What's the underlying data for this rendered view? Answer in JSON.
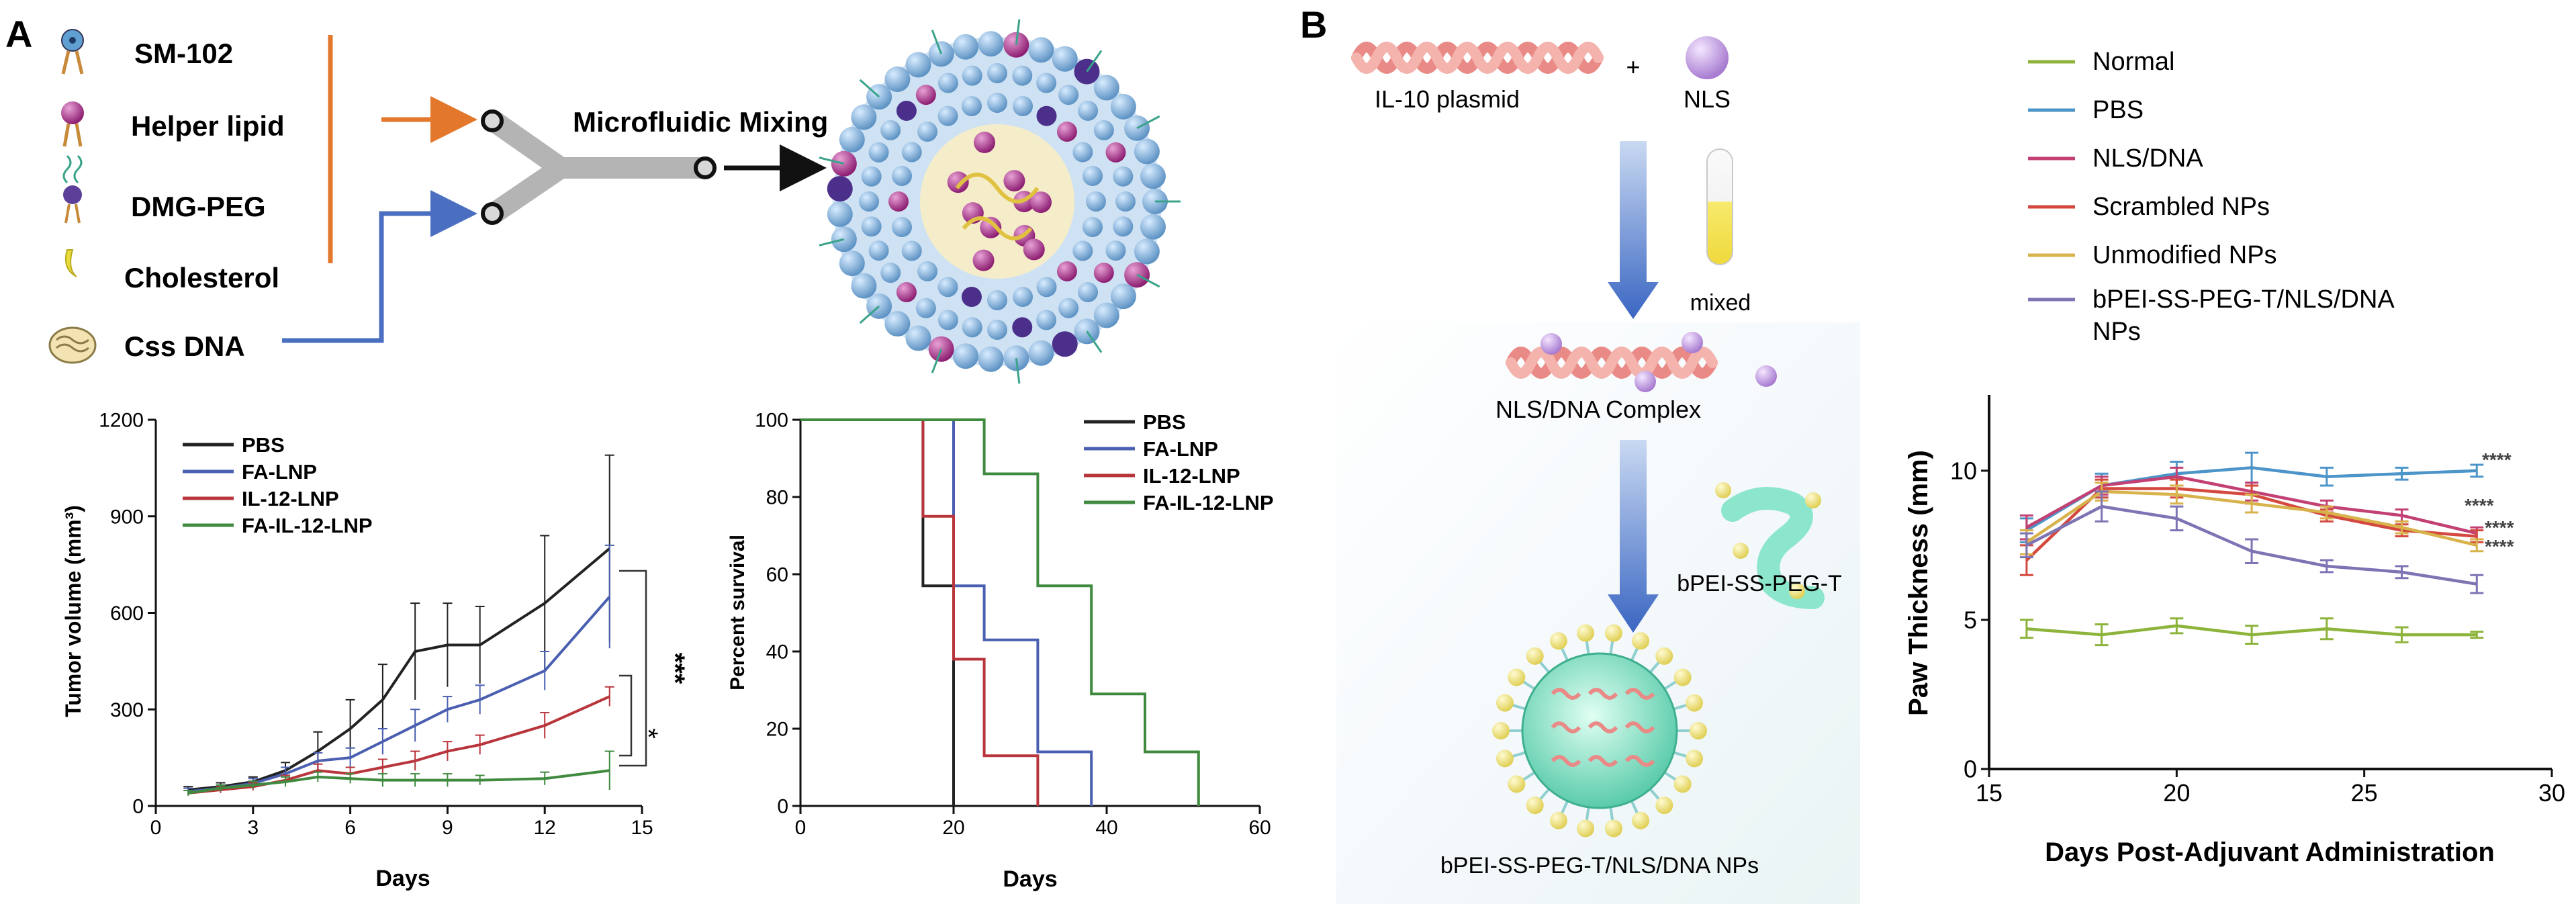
{
  "panel_a": {
    "label": "A",
    "components": [
      {
        "name": "SM-102"
      },
      {
        "name": "Helper lipid"
      },
      {
        "name": "DMG-PEG"
      },
      {
        "name": "Cholesterol"
      },
      {
        "name": "Css DNA"
      }
    ],
    "mixing_label": "Microfluidic Mixing"
  },
  "panel_b": {
    "label": "B",
    "plasmid_label": "IL-10 plasmid",
    "plus": "+",
    "nls_label": "NLS",
    "mixed_label": "mixed",
    "complex_label": "NLS/DNA Complex",
    "polymer_label": "bPEI-SS-PEG-T",
    "np_label": "bPEI-SS-PEG-T/NLS/DNA NPs"
  },
  "chart_data": [
    {
      "type": "line",
      "xlabel": "Days",
      "ylabel": "Tumor volume (mm³)",
      "xlim": [
        0,
        15
      ],
      "ylim": [
        0,
        1200
      ],
      "xticks": [
        0,
        3,
        6,
        9,
        12,
        15
      ],
      "yticks": [
        0,
        300,
        600,
        900,
        1200
      ],
      "legend": "top-left",
      "x": [
        1,
        2,
        3,
        4,
        5,
        6,
        7,
        8,
        9,
        10,
        12,
        14
      ],
      "series": [
        {
          "name": "PBS",
          "color": "#222222",
          "values": [
            50,
            60,
            75,
            110,
            170,
            240,
            330,
            480,
            500,
            500,
            630,
            800
          ],
          "errors": [
            10,
            12,
            15,
            25,
            60,
            90,
            110,
            150,
            130,
            120,
            210,
            290
          ]
        },
        {
          "name": "FA-LNP",
          "color": "#4a5fb0",
          "values": [
            45,
            55,
            70,
            100,
            140,
            150,
            200,
            250,
            300,
            330,
            420,
            650
          ],
          "errors": [
            10,
            10,
            15,
            20,
            25,
            30,
            40,
            50,
            40,
            45,
            60,
            160
          ]
        },
        {
          "name": "IL-12-LNP",
          "color": "#b8353b",
          "values": [
            40,
            50,
            60,
            80,
            110,
            100,
            120,
            140,
            170,
            190,
            250,
            340
          ],
          "errors": [
            8,
            10,
            12,
            15,
            20,
            20,
            25,
            30,
            30,
            30,
            40,
            30
          ]
        },
        {
          "name": "FA-IL-12-LNP",
          "color": "#3f8a3f",
          "values": [
            40,
            55,
            65,
            75,
            90,
            85,
            80,
            80,
            80,
            80,
            85,
            110
          ],
          "errors": [
            8,
            10,
            12,
            15,
            15,
            15,
            20,
            20,
            20,
            15,
            20,
            60
          ]
        }
      ],
      "annotations": [
        "***",
        "*"
      ]
    },
    {
      "type": "line",
      "xlabel": "Days",
      "ylabel": "Percent survival",
      "xlim": [
        0,
        60
      ],
      "ylim": [
        0,
        100
      ],
      "xticks": [
        0,
        20,
        40,
        60
      ],
      "yticks": [
        0,
        20,
        40,
        60,
        80,
        100
      ],
      "legend": "top-right",
      "step": true,
      "series": [
        {
          "name": "PBS",
          "color": "#222222",
          "points": [
            [
              0,
              100
            ],
            [
              16,
              100
            ],
            [
              16,
              57
            ],
            [
              20,
              57
            ],
            [
              20,
              0
            ]
          ]
        },
        {
          "name": "FA-LNP",
          "color": "#4a5fb0",
          "points": [
            [
              0,
              100
            ],
            [
              20,
              100
            ],
            [
              20,
              57
            ],
            [
              24,
              57
            ],
            [
              24,
              43
            ],
            [
              31,
              43
            ],
            [
              31,
              14
            ],
            [
              38,
              14
            ],
            [
              38,
              0
            ]
          ]
        },
        {
          "name": "IL-12-LNP",
          "color": "#b8353b",
          "points": [
            [
              0,
              100
            ],
            [
              16,
              100
            ],
            [
              16,
              75
            ],
            [
              20,
              75
            ],
            [
              20,
              38
            ],
            [
              24,
              38
            ],
            [
              24,
              13
            ],
            [
              31,
              13
            ],
            [
              31,
              0
            ]
          ]
        },
        {
          "name": "FA-IL-12-LNP",
          "color": "#3f8a3f",
          "points": [
            [
              0,
              100
            ],
            [
              24,
              100
            ],
            [
              24,
              86
            ],
            [
              31,
              86
            ],
            [
              31,
              57
            ],
            [
              38,
              57
            ],
            [
              38,
              29
            ],
            [
              45,
              29
            ],
            [
              45,
              14
            ],
            [
              52,
              14
            ],
            [
              52,
              0
            ]
          ]
        }
      ]
    },
    {
      "type": "line",
      "xlabel": "Days Post-Adjuvant Administration",
      "ylabel": "Paw Thickness (mm)",
      "xlim": [
        15,
        30
      ],
      "ylim": [
        0,
        12
      ],
      "xticks": [
        15,
        20,
        25,
        30
      ],
      "yticks": [
        0,
        5,
        10
      ],
      "legend": "top, outside",
      "x": [
        16,
        18,
        20,
        22,
        24,
        26,
        28
      ],
      "series": [
        {
          "name": "Normal",
          "color": "#8db33a",
          "values": [
            4.7,
            4.5,
            4.8,
            4.5,
            4.7,
            4.5,
            4.5
          ],
          "errors": [
            0.3,
            0.35,
            0.25,
            0.3,
            0.35,
            0.25,
            0.1
          ]
        },
        {
          "name": "PBS",
          "color": "#4d95c9",
          "values": [
            8.0,
            9.5,
            9.9,
            10.1,
            9.8,
            9.9,
            10.0
          ],
          "errors": [
            0.4,
            0.4,
            0.4,
            0.5,
            0.3,
            0.2,
            0.2
          ]
        },
        {
          "name": "NLS/DNA",
          "color": "#c24073",
          "values": [
            8.1,
            9.5,
            9.8,
            9.3,
            8.8,
            8.5,
            7.9
          ],
          "errors": [
            0.4,
            0.3,
            0.3,
            0.3,
            0.2,
            0.2,
            0.2
          ]
        },
        {
          "name": "Scrambled NPs",
          "color": "#d4493f",
          "values": [
            7.0,
            9.4,
            9.4,
            9.2,
            8.5,
            8.0,
            7.8
          ],
          "errors": [
            0.5,
            0.3,
            0.3,
            0.3,
            0.2,
            0.2,
            0.2
          ]
        },
        {
          "name": "Unmodified NPs",
          "color": "#d8b24a",
          "values": [
            7.6,
            9.3,
            9.2,
            8.9,
            8.6,
            8.1,
            7.5
          ],
          "errors": [
            0.4,
            0.3,
            0.3,
            0.3,
            0.2,
            0.2,
            0.2
          ]
        },
        {
          "name": "bPEI-SS-PEG-T/NLS/DNA NPs",
          "color": "#7d74b4",
          "values": [
            7.5,
            8.8,
            8.4,
            7.3,
            6.8,
            6.6,
            6.2
          ],
          "errors": [
            0.4,
            0.5,
            0.4,
            0.4,
            0.2,
            0.2,
            0.3
          ]
        }
      ],
      "annotations": [
        "****",
        "****",
        "****",
        "****"
      ]
    }
  ]
}
